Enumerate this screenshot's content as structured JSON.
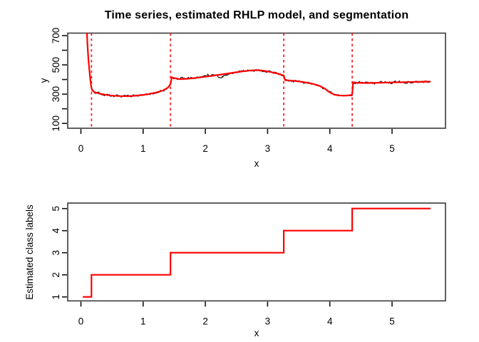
{
  "figure": {
    "background": "#ffffff",
    "box_color": "#454545",
    "tick_color": "#111111"
  },
  "chart_data": [
    {
      "type": "line",
      "title": "Time series, estimated RHLP model, and segmentation",
      "xlabel": "x",
      "ylabel": "y",
      "xlim": [
        -0.212,
        5.859
      ],
      "ylim": [
        67,
        717
      ],
      "x_ticks": [
        0,
        1,
        2,
        3,
        4,
        5
      ],
      "y_ticks": [
        100,
        200,
        300,
        400,
        500,
        600,
        700
      ],
      "y_labeled_ticks": [
        100,
        300,
        500,
        700
      ],
      "grid": false,
      "segmentation_lines_x": [
        0.17,
        1.44,
        3.26,
        4.36
      ],
      "segmentation_color": "#ff1f1f",
      "series": [
        {
          "name": "observed-time-series",
          "color": "#000000",
          "style": "noisy-line",
          "x_start": 0.03,
          "x_end": 5.62,
          "noise_amplitude": 6.5,
          "noise_seed": 20,
          "deviations": [
            {
              "center": 2.27,
              "width": 0.09,
              "dy": -17
            },
            {
              "center": 2.05,
              "width": 0.05,
              "dy": 8
            },
            {
              "center": 1.62,
              "width": 0.05,
              "dy": 5
            }
          ]
        },
        {
          "name": "rhlp-model-fit",
          "color": "#ff0000",
          "style": "solid-line",
          "points": [
            [
              0.03,
              1500
            ],
            [
              0.06,
              1100
            ],
            [
              0.09,
              780
            ],
            [
              0.105,
              640
            ],
            [
              0.12,
              540
            ],
            [
              0.135,
              470
            ],
            [
              0.15,
              405
            ],
            [
              0.165,
              352
            ],
            [
              0.18,
              328
            ],
            [
              0.22,
              314
            ],
            [
              0.3,
              303
            ],
            [
              0.45,
              292
            ],
            [
              0.6,
              287
            ],
            [
              0.75,
              286
            ],
            [
              0.9,
              290
            ],
            [
              1.05,
              298
            ],
            [
              1.2,
              310
            ],
            [
              1.32,
              325
            ],
            [
              1.4,
              345
            ],
            [
              1.44,
              368
            ],
            [
              1.46,
              415
            ],
            [
              1.5,
              410
            ],
            [
              1.58,
              403
            ],
            [
              1.7,
              405
            ],
            [
              1.85,
              411
            ],
            [
              2.0,
              419
            ],
            [
              2.15,
              428
            ],
            [
              2.3,
              437
            ],
            [
              2.45,
              447
            ],
            [
              2.6,
              456
            ],
            [
              2.75,
              463
            ],
            [
              2.85,
              464
            ],
            [
              2.95,
              459
            ],
            [
              3.05,
              451
            ],
            [
              3.15,
              442
            ],
            [
              3.22,
              433
            ],
            [
              3.26,
              428
            ],
            [
              3.28,
              396
            ],
            [
              3.35,
              393
            ],
            [
              3.45,
              390
            ],
            [
              3.55,
              384
            ],
            [
              3.65,
              377
            ],
            [
              3.75,
              368
            ],
            [
              3.85,
              354
            ],
            [
              3.93,
              335
            ],
            [
              4.0,
              312
            ],
            [
              4.07,
              297
            ],
            [
              4.15,
              291
            ],
            [
              4.25,
              290
            ],
            [
              4.33,
              293
            ],
            [
              4.36,
              298
            ],
            [
              4.375,
              381
            ],
            [
              4.45,
              377
            ],
            [
              4.6,
              376
            ],
            [
              4.8,
              378
            ],
            [
              5.0,
              380
            ],
            [
              5.2,
              382
            ],
            [
              5.4,
              384
            ],
            [
              5.62,
              386
            ]
          ]
        }
      ]
    },
    {
      "type": "step",
      "title": "",
      "xlabel": "x",
      "ylabel": "Estimated class labels",
      "xlim": [
        -0.212,
        5.859
      ],
      "ylim": [
        0.82,
        5.25
      ],
      "x_ticks": [
        0,
        1,
        2,
        3,
        4,
        5
      ],
      "y_ticks": [
        1,
        2,
        3,
        4,
        5
      ],
      "grid": false,
      "x_start": 0.03,
      "x_end": 5.62,
      "breakpoints_x": [
        0.17,
        1.44,
        3.26,
        4.36
      ],
      "classes": [
        1,
        2,
        3,
        4,
        5
      ],
      "line_color": "#ff0000"
    }
  ]
}
